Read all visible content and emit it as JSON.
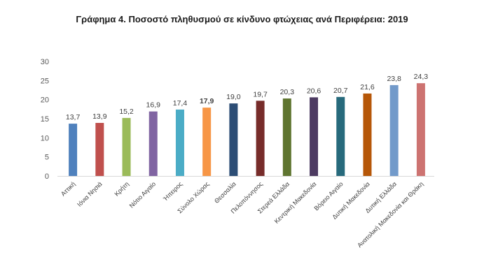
{
  "chart_data": {
    "type": "bar",
    "title": "Γράφημα 4. Ποσοστό πληθυσμού σε κίνδυνο φτώχειας ανά Περιφέρεια: 2019",
    "xlabel": "",
    "ylabel": "",
    "ylim": [
      0,
      30
    ],
    "yticks": [
      0,
      5,
      10,
      15,
      20,
      25,
      30
    ],
    "grid": false,
    "categories": [
      "Αττική",
      "Ιόνια Νησιά",
      "Κρήτη",
      "Νότιο Αιγαίο",
      "Ήπειρος",
      "Σύνολο Χώρας",
      "Θεσσαλία",
      "Πελοπόννησος",
      "Στερεά Ελλάδα",
      "Κεντρική Μακεδονία",
      "Βόρειο Αιγαίο",
      "Δυτική Μακεδονία",
      "Δυτική Ελλάδα",
      "Ανατολική Μακεδονία και Θράκη"
    ],
    "values": [
      13.7,
      13.9,
      15.2,
      16.9,
      17.4,
      17.9,
      19.0,
      19.7,
      20.3,
      20.6,
      20.7,
      21.6,
      23.8,
      24.3
    ],
    "data_labels": [
      "13,7",
      "13,9",
      "15,2",
      "16,9",
      "17,4",
      "17,9",
      "19,0",
      "19,7",
      "20,3",
      "20,6",
      "20,7",
      "21,6",
      "23,8",
      "24,3"
    ],
    "tick_labels": [
      "0",
      "5",
      "10",
      "15",
      "20",
      "25",
      "30"
    ],
    "colors": [
      "#4f81bd",
      "#c0504d",
      "#9bbb59",
      "#8064a2",
      "#4bacc6",
      "#f79646",
      "#2c4d75",
      "#772c2a",
      "#5f7530",
      "#4d3b62",
      "#276a7c",
      "#b65708",
      "#729aca",
      "#cd7371"
    ],
    "highlight_index": 5
  }
}
